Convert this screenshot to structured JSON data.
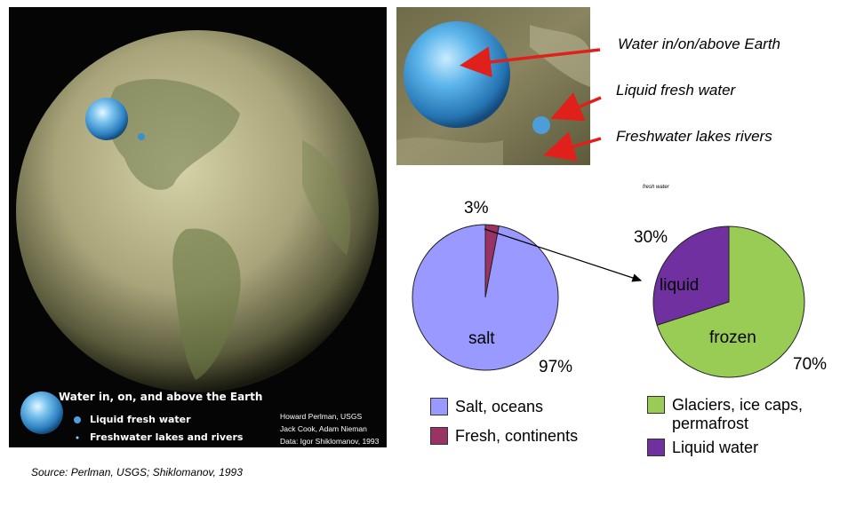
{
  "panel": {
    "title": "Water in, on, and above the Earth",
    "liquid": "Liquid fresh water",
    "lakes": "Freshwater lakes and rivers",
    "credits": [
      "Howard Perlman, USGS",
      "Jack Cook, Adam Nieman",
      "Data: Igor Shiklomanov, 1993"
    ]
  },
  "annotations": {
    "water_all": "Water in/on/above Earth",
    "liquid_fresh": "Liquid fresh water",
    "lakes_rivers": "Freshwater lakes rivers"
  },
  "source": "Source: Perlman, USGS; Shiklomanov, 1993",
  "colors": {
    "salt": "#9999ff",
    "fresh": "#993366",
    "frozen": "#99cc55",
    "liquid": "#7030a0",
    "arrow": "#e0201a"
  },
  "chart_data": [
    {
      "type": "pie",
      "title": "",
      "slices": [
        {
          "key": "salt",
          "label": "salt",
          "value": 97,
          "pct_label": "97%",
          "legend": "Salt, oceans",
          "color": "#9999ff"
        },
        {
          "key": "fresh",
          "label": "",
          "value": 3,
          "pct_label": "3%",
          "legend": "Fresh, continents",
          "color": "#993366"
        }
      ]
    },
    {
      "type": "pie",
      "title": "fresh water",
      "slices": [
        {
          "key": "frozen",
          "label": "frozen",
          "value": 70,
          "pct_label": "70%",
          "legend": "Glaciers, ice caps, permafrost",
          "color": "#99cc55"
        },
        {
          "key": "liquid",
          "label": "liquid",
          "value": 30,
          "pct_label": "30%",
          "legend": "Liquid water",
          "color": "#7030a0"
        }
      ]
    }
  ]
}
